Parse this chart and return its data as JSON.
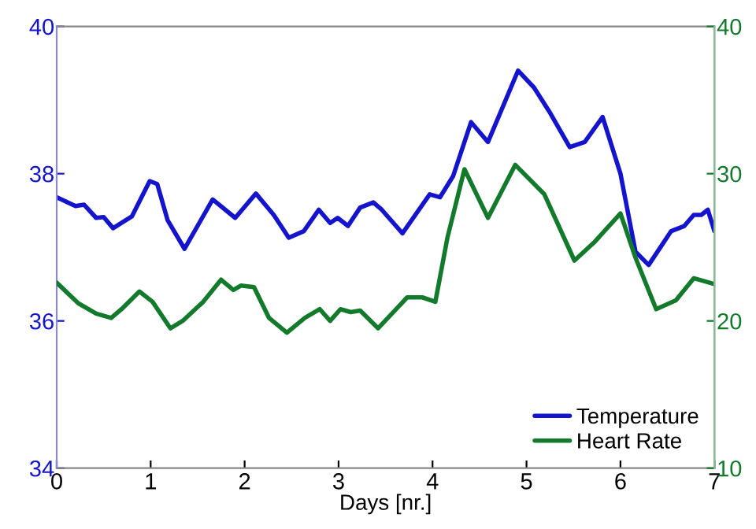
{
  "chart_data": {
    "type": "line",
    "xlabel": "Days [nr.]",
    "xlim": [
      0,
      7
    ],
    "xticks": [
      0,
      1,
      2,
      3,
      4,
      5,
      6,
      7
    ],
    "ylim": [
      34,
      40
    ],
    "yticks": [
      34,
      36,
      38,
      40
    ],
    "y2lim": [
      10,
      40
    ],
    "y2ticks": [
      10,
      20,
      30,
      40
    ],
    "legend": "bottom right",
    "grid": false,
    "marker": "none",
    "line_style": "solid",
    "series": [
      {
        "name": "Temperature",
        "color": "#1414cc",
        "x": [
          0,
          0.2,
          0.29,
          0.42,
          0.5,
          0.6,
          0.8,
          0.99,
          1.07,
          1.18,
          1.36,
          1.66,
          1.9,
          2.12,
          2.31,
          2.47,
          2.63,
          2.79,
          2.91,
          2.99,
          3.1,
          3.23,
          3.37,
          3.46,
          3.68,
          3.97,
          4.08,
          4.22,
          4.41,
          4.59,
          4.91,
          5.08,
          5.24,
          5.46,
          5.62,
          5.81,
          6.0,
          6.16,
          6.3,
          6.54,
          6.68,
          6.78,
          6.86,
          6.93,
          7.0
        ],
        "values": [
          37.68,
          37.56,
          37.58,
          37.4,
          37.41,
          37.26,
          37.42,
          37.9,
          37.86,
          37.37,
          36.98,
          37.65,
          37.4,
          37.73,
          37.44,
          37.13,
          37.22,
          37.51,
          37.33,
          37.4,
          37.29,
          37.54,
          37.61,
          37.51,
          37.19,
          37.72,
          37.68,
          37.97,
          38.7,
          38.43,
          39.4,
          39.17,
          38.85,
          38.36,
          38.43,
          38.77,
          38.0,
          36.94,
          36.76,
          37.22,
          37.29,
          37.44,
          37.44,
          37.51,
          37.22
        ]
      },
      {
        "name": "Heart Rate",
        "color": "#137a2c",
        "axis": "y2",
        "x": [
          0,
          0.23,
          0.42,
          0.58,
          0.69,
          0.88,
          1.02,
          1.21,
          1.34,
          1.56,
          1.75,
          1.88,
          1.96,
          2.1,
          2.26,
          2.45,
          2.64,
          2.8,
          2.91,
          3.02,
          3.13,
          3.23,
          3.42,
          3.73,
          3.89,
          4.03,
          4.16,
          4.34,
          4.59,
          4.88,
          5.19,
          5.51,
          5.73,
          6.0,
          6.16,
          6.38,
          6.59,
          6.78,
          7.0
        ],
        "values": [
          22.6,
          21.2,
          20.5,
          20.2,
          20.8,
          22.0,
          21.3,
          19.5,
          20.0,
          21.3,
          22.8,
          22.1,
          22.4,
          22.3,
          20.2,
          19.2,
          20.2,
          20.8,
          20.0,
          20.8,
          20.6,
          20.7,
          19.5,
          21.6,
          21.6,
          21.3,
          25.7,
          30.3,
          27.0,
          30.6,
          28.6,
          24.1,
          25.4,
          27.3,
          24.3,
          20.8,
          21.4,
          22.9,
          22.5
        ]
      }
    ]
  }
}
